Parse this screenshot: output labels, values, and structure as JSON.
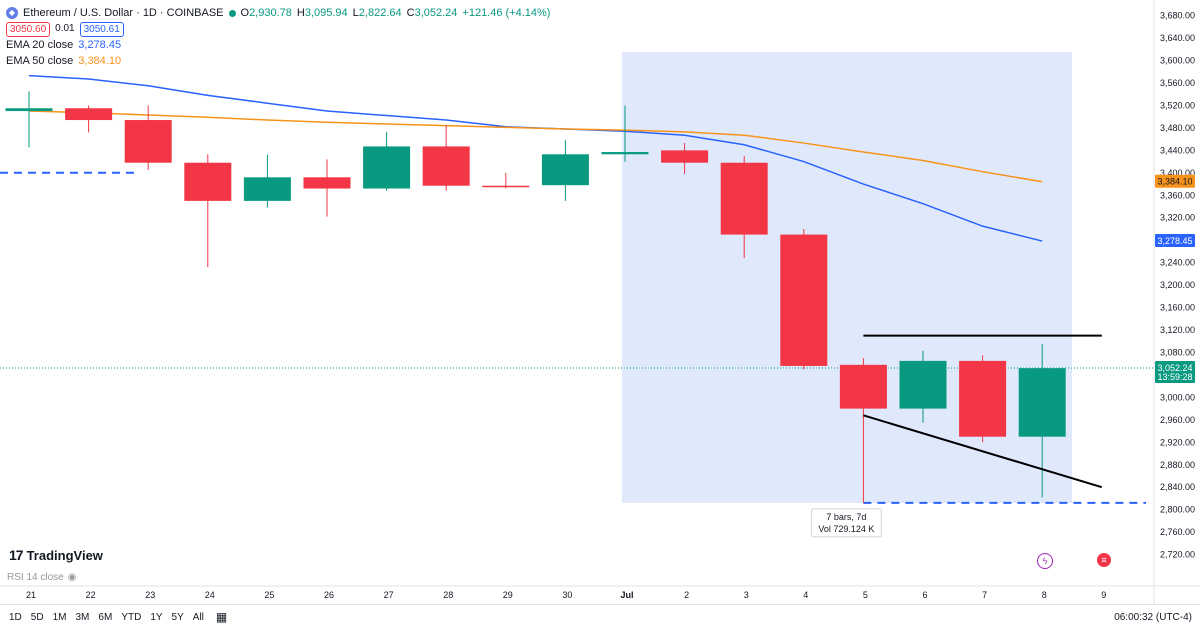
{
  "header": {
    "title": "Ethereum / U.S. Dollar · 1D · COINBASE",
    "ohlc": [
      {
        "k": "O",
        "v": "2,930.78"
      },
      {
        "k": "H",
        "v": "3,095.94"
      },
      {
        "k": "L",
        "v": "2,822.64"
      },
      {
        "k": "C",
        "v": "3,052.24"
      }
    ],
    "change": "+121.46 (+4.14%)",
    "sell_price": "3050.60",
    "spread": "0.01",
    "buy_price": "3050.61",
    "ema20_label": "EMA 20 close",
    "ema20_value": "3,278.45",
    "ema50_label": "EMA 50 close",
    "ema50_value": "3,384.10"
  },
  "logo_text": "TradingView",
  "rsi_label": "RSI 14 close",
  "ranges": [
    "1D",
    "5D",
    "1M",
    "3M",
    "6M",
    "YTD",
    "1Y",
    "5Y",
    "All"
  ],
  "clock": "06:00:32 (UTC-4)",
  "measure": {
    "bars": "7 bars, 7d",
    "vol": "Vol 729.124 K"
  },
  "colors": {
    "up": "#089981",
    "down": "#f23645",
    "ema20": "#2962ff",
    "ema50": "#f7931a",
    "range": "#dbe4fb"
  },
  "chart_data": {
    "type": "candlestick",
    "x_labels": [
      "21",
      "22",
      "23",
      "24",
      "25",
      "26",
      "27",
      "28",
      "29",
      "30",
      "Jul",
      "2",
      "3",
      "4",
      "5",
      "6",
      "7",
      "8",
      "9"
    ],
    "y_ticks": [
      "3,680.00",
      "3,640.00",
      "3,600.00",
      "3,560.00",
      "3,520.00",
      "3,480.00",
      "3,440.00",
      "3,400.00",
      "3,360.00",
      "3,320.00",
      "3,280.00",
      "3,240.00",
      "3,200.00",
      "3,160.00",
      "3,120.00",
      "3,080.00",
      "3,040.00",
      "3,000.00",
      "2,960.00",
      "2,920.00",
      "2,880.00",
      "2,840.00",
      "2,800.00",
      "2,760.00",
      "2,720.00"
    ],
    "ylim": [
      2705,
      3690
    ],
    "candles": [
      {
        "x": 0,
        "o": 3510,
        "h": 3545,
        "l": 3445,
        "c": 3515
      },
      {
        "x": 1,
        "o": 3515,
        "h": 3520,
        "l": 3472,
        "c": 3494
      },
      {
        "x": 2,
        "o": 3494,
        "h": 3520,
        "l": 3405,
        "c": 3418
      },
      {
        "x": 3,
        "o": 3418,
        "h": 3433,
        "l": 3232,
        "c": 3350
      },
      {
        "x": 4,
        "o": 3350,
        "h": 3432,
        "l": 3338,
        "c": 3392
      },
      {
        "x": 5,
        "o": 3392,
        "h": 3424,
        "l": 3322,
        "c": 3372
      },
      {
        "x": 6,
        "o": 3372,
        "h": 3473,
        "l": 3368,
        "c": 3447
      },
      {
        "x": 7,
        "o": 3447,
        "h": 3485,
        "l": 3368,
        "c": 3377
      },
      {
        "x": 8,
        "o": 3377,
        "h": 3400,
        "l": 3372,
        "c": 3375
      },
      {
        "x": 9,
        "o": 3378,
        "h": 3458,
        "l": 3350,
        "c": 3433
      },
      {
        "x": 10,
        "o": 3433,
        "h": 3520,
        "l": 3420,
        "c": 3437
      },
      {
        "x": 11,
        "o": 3440,
        "h": 3453,
        "l": 3398,
        "c": 3418
      },
      {
        "x": 12,
        "o": 3418,
        "h": 3430,
        "l": 3248,
        "c": 3290
      },
      {
        "x": 13,
        "o": 3290,
        "h": 3300,
        "l": 3050,
        "c": 3056
      },
      {
        "x": 14,
        "o": 3058,
        "h": 3070,
        "l": 2812,
        "c": 2980
      },
      {
        "x": 15,
        "o": 2980,
        "h": 3083,
        "l": 2955,
        "c": 3065
      },
      {
        "x": 16,
        "o": 3065,
        "h": 3075,
        "l": 2920,
        "c": 2930
      },
      {
        "x": 17,
        "o": 2930,
        "h": 3095,
        "l": 2822,
        "c": 3052
      }
    ],
    "series": [
      {
        "name": "EMA 20 close",
        "color": "#2962ff",
        "x": [
          0,
          1,
          2,
          3,
          4,
          5,
          6,
          7,
          8,
          9,
          10,
          11,
          12,
          13,
          14,
          15,
          16,
          17
        ],
        "values": [
          3573,
          3567,
          3555,
          3538,
          3524,
          3510,
          3502,
          3494,
          3482,
          3478,
          3474,
          3467,
          3450,
          3420,
          3380,
          3345,
          3305,
          3278.45
        ]
      },
      {
        "name": "EMA 50 close",
        "color": "#f7931a",
        "x": [
          0,
          1,
          2,
          3,
          4,
          5,
          6,
          7,
          8,
          9,
          10,
          11,
          12,
          13,
          14,
          15,
          16,
          17
        ],
        "values": [
          3510,
          3507,
          3503,
          3499,
          3494,
          3490,
          3487,
          3484,
          3481,
          3478,
          3476,
          3473,
          3467,
          3453,
          3437,
          3422,
          3402,
          3384.1
        ]
      }
    ],
    "last_price": "3,052.24",
    "countdown": "13:59:28",
    "ema20_tag": "3,278.45",
    "ema50_tag": "3,384.10",
    "support_level": 2812,
    "prior_level": 3400,
    "resistance": {
      "from": 14,
      "to": 18,
      "y": 3110
    },
    "trendline": {
      "x1": 14,
      "y1": 2968,
      "x2": 18,
      "y2": 2840
    },
    "date_range": {
      "from": 10,
      "to": 17.5,
      "top": 3615,
      "bottom": 2812
    }
  }
}
